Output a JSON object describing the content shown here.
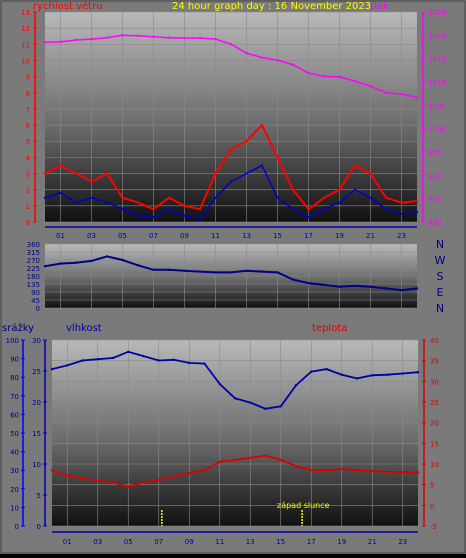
{
  "header": {
    "title": "24 hour graph day : 16 November 2023",
    "left_label": "rychlost větru",
    "right_label": "tlak"
  },
  "colors": {
    "wind": "#ff0000",
    "wind_avg": "#0000cc",
    "pressure": "#ff00ff",
    "direction": "#000088",
    "humidity": "#0000aa",
    "temperature": "#dd0000",
    "title": "#ffff00",
    "rain_axis": "#0000ff",
    "sunset": "#ffff00"
  },
  "chart_data": [
    {
      "type": "line",
      "name_left": "rychlost větru",
      "name_right": "tlak",
      "x_ticks": [
        "01",
        "03",
        "05",
        "07",
        "09",
        "11",
        "13",
        "15",
        "17",
        "19",
        "21",
        "23"
      ],
      "xlim": [
        0,
        24
      ],
      "y_left": {
        "ticks": [
          0,
          1,
          2,
          3,
          4,
          5,
          6,
          7,
          8,
          9,
          10,
          11,
          12,
          13
        ],
        "range": [
          0,
          13
        ]
      },
      "y_right": {
        "ticks": [
          980,
          985,
          990,
          995,
          1000,
          1005,
          1010,
          1015,
          1020,
          1025
        ],
        "range": [
          980,
          1025
        ]
      },
      "series": [
        {
          "name": "tlak",
          "axis": "right",
          "x": [
            0,
            1,
            2,
            3,
            4,
            5,
            6,
            7,
            8,
            9,
            10,
            11,
            12,
            13,
            14,
            15,
            16,
            17,
            18,
            19,
            20,
            21,
            22,
            23,
            24
          ],
          "values": [
            1018.5,
            1018.6,
            1019,
            1019.2,
            1019.5,
            1020,
            1019.9,
            1019.7,
            1019.5,
            1019.4,
            1019.4,
            1019.2,
            1018.1,
            1016.2,
            1015.2,
            1014.7,
            1013.7,
            1011.9,
            1011.2,
            1011.1,
            1010.2,
            1009.1,
            1007.7,
            1007.4,
            1006.7
          ]
        },
        {
          "name": "rychlost větru",
          "axis": "left",
          "x": [
            0,
            1,
            2,
            3,
            4,
            5,
            6,
            7,
            8,
            9,
            10,
            11,
            12,
            13,
            14,
            15,
            16,
            17,
            18,
            19,
            20,
            21,
            22,
            23,
            24
          ],
          "values": [
            3,
            3.5,
            3,
            2.5,
            3,
            1.5,
            1.2,
            0.8,
            1.5,
            1,
            0.8,
            3,
            4.5,
            5,
            6,
            4,
            2,
            0.8,
            1.5,
            2,
            3.5,
            3,
            1.5,
            1.2,
            1.3
          ]
        },
        {
          "name": "průměr",
          "axis": "left",
          "x": [
            0,
            1,
            2,
            3,
            4,
            5,
            6,
            7,
            8,
            9,
            10,
            11,
            12,
            13,
            14,
            15,
            16,
            17,
            18,
            19,
            20,
            21,
            22,
            23,
            24
          ],
          "values": [
            1.5,
            1.8,
            1.2,
            1.5,
            1.2,
            0.8,
            0.4,
            0.3,
            0.8,
            0.4,
            0.2,
            1.5,
            2.5,
            3,
            3.5,
            1.5,
            0.8,
            0.3,
            0.8,
            1.2,
            2,
            1.5,
            0.8,
            0.5,
            0.6
          ]
        }
      ]
    },
    {
      "type": "line",
      "y_labels_left": [
        "360",
        "315",
        "270",
        "225",
        "180",
        "135",
        "90",
        "45",
        "0"
      ],
      "y_labels_right": [
        "N",
        "W",
        "S",
        "E",
        "N"
      ],
      "range": [
        0,
        360
      ],
      "series": [
        {
          "name": "směr větru",
          "x": [
            0,
            1,
            2,
            3,
            4,
            5,
            6,
            7,
            8,
            9,
            10,
            11,
            12,
            13,
            14,
            15,
            16,
            17,
            18,
            19,
            20,
            21,
            22,
            23,
            24
          ],
          "values": [
            235,
            250,
            255,
            265,
            290,
            270,
            240,
            215,
            215,
            210,
            205,
            200,
            200,
            210,
            205,
            200,
            160,
            140,
            130,
            120,
            125,
            120,
            110,
            100,
            110
          ]
        }
      ]
    },
    {
      "type": "line",
      "top_labels": {
        "rain": "srážky",
        "humidity": "vlhkost",
        "temperature": "teplota"
      },
      "x_ticks": [
        "01",
        "03",
        "05",
        "07",
        "09",
        "11",
        "13",
        "15",
        "17",
        "19",
        "21",
        "23"
      ],
      "xlim": [
        0,
        24
      ],
      "y_rain": {
        "ticks": [
          0,
          10,
          20,
          30,
          40,
          50,
          60,
          70,
          80,
          90,
          100
        ],
        "range": [
          0,
          100
        ]
      },
      "y_humidity": {
        "ticks": [
          0,
          5,
          10,
          15,
          20,
          25,
          30
        ],
        "range": [
          0,
          30
        ]
      },
      "y_temperature": {
        "ticks": [
          -5,
          0,
          5,
          10,
          15,
          20,
          25,
          30,
          35,
          40
        ],
        "range": [
          -5,
          40
        ]
      },
      "annotation": "západ slunce",
      "markers_x": [
        7.2,
        16.4
      ],
      "series": [
        {
          "name": "vlhkost",
          "axis": "humidity",
          "x": [
            0,
            1,
            2,
            3,
            4,
            5,
            6,
            7,
            8,
            9,
            10,
            11,
            12,
            13,
            14,
            15,
            16,
            17,
            18,
            19,
            20,
            21,
            22,
            23,
            24
          ],
          "values": [
            25.3,
            25.9,
            26.7,
            26.9,
            27.1,
            28.1,
            27.4,
            26.7,
            26.8,
            26.3,
            26.2,
            22.9,
            20.6,
            19.9,
            18.9,
            19.3,
            22.7,
            24.9,
            25.3,
            24.4,
            23.8,
            24.3,
            24.4,
            24.6,
            24.8
          ]
        },
        {
          "name": "teplota",
          "axis": "temperature",
          "x": [
            0,
            1,
            2,
            3,
            4,
            5,
            6,
            7,
            8,
            9,
            10,
            11,
            12,
            13,
            14,
            15,
            16,
            17,
            18,
            19,
            20,
            21,
            22,
            23,
            24
          ],
          "values": [
            8.5,
            7.2,
            6.5,
            6,
            5.5,
            4.5,
            5.5,
            6.2,
            7,
            7.8,
            8.5,
            10.5,
            11,
            11.5,
            12,
            11,
            9.5,
            8.5,
            8.5,
            8.8,
            8.5,
            8.3,
            8.1,
            8,
            8
          ]
        }
      ]
    }
  ]
}
